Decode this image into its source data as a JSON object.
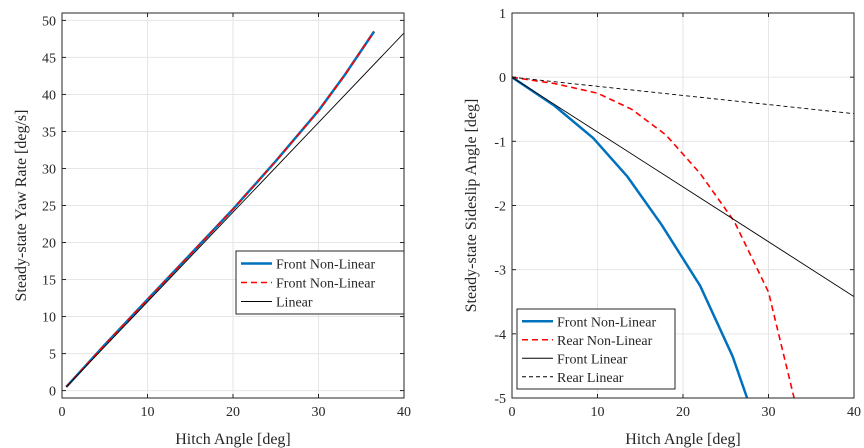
{
  "chart_data": [
    {
      "type": "line",
      "title": "",
      "xlabel": "Hitch Angle [deg]",
      "ylabel": "Steady-state Yaw Rate [deg/s]",
      "xlim": [
        0,
        40
      ],
      "ylim": [
        -1,
        51
      ],
      "xticks": [
        0,
        10,
        20,
        30,
        40
      ],
      "yticks": [
        0,
        5,
        10,
        15,
        20,
        25,
        30,
        35,
        40,
        45,
        50
      ],
      "grid": true,
      "legend_position": "lower-right",
      "series": [
        {
          "name": "Front Non-Linear",
          "color": "#0072BD",
          "style": "solid",
          "x": [
            0.5,
            5,
            10,
            15,
            20,
            25,
            30,
            33,
            36.5
          ],
          "y": [
            0.5,
            6.2,
            12.3,
            18.4,
            24.5,
            31,
            37.8,
            42.5,
            48.5
          ]
        },
        {
          "name": "Front Non-Linear",
          "color": "#ff0000",
          "style": "dashed",
          "x": [
            0.5,
            5,
            10,
            15,
            20,
            25,
            30,
            33,
            36.5
          ],
          "y": [
            0.5,
            6.2,
            12.3,
            18.4,
            24.5,
            31,
            37.8,
            42.5,
            48.5
          ]
        },
        {
          "name": "Linear",
          "color": "#000000",
          "style": "solid",
          "x": [
            0.5,
            40
          ],
          "y": [
            0.5,
            48.3
          ]
        }
      ]
    },
    {
      "type": "line",
      "title": "",
      "xlabel": "Hitch Angle [deg]",
      "ylabel": "Steady-state Sideslip Angle [deg]",
      "xlim": [
        0,
        40
      ],
      "ylim": [
        -5,
        1
      ],
      "xticks": [
        0,
        10,
        20,
        30,
        40
      ],
      "yticks": [
        -5,
        -4,
        -3,
        -2,
        -1,
        0,
        1
      ],
      "grid": true,
      "legend_position": "lower-left",
      "series": [
        {
          "name": "Front Non-Linear",
          "color": "#0072BD",
          "style": "solid",
          "x": [
            0,
            5,
            9.5,
            13.5,
            17.5,
            22,
            25.8,
            27.5
          ],
          "y": [
            0,
            -0.45,
            -0.95,
            -1.55,
            -2.3,
            -3.25,
            -4.35,
            -5
          ]
        },
        {
          "name": "Rear Non-Linear",
          "color": "#ff0000",
          "style": "dashed",
          "x": [
            0,
            5,
            10,
            14,
            18,
            22,
            26,
            30,
            33
          ],
          "y": [
            0,
            -0.1,
            -0.25,
            -0.5,
            -0.9,
            -1.5,
            -2.25,
            -3.35,
            -5
          ]
        },
        {
          "name": "Front Linear",
          "color": "#000000",
          "style": "solid",
          "x": [
            0,
            40
          ],
          "y": [
            0,
            -3.42
          ]
        },
        {
          "name": "Rear Linear",
          "color": "#000000",
          "style": "dashed",
          "x": [
            0,
            40
          ],
          "y": [
            0,
            -0.57
          ]
        }
      ]
    }
  ]
}
